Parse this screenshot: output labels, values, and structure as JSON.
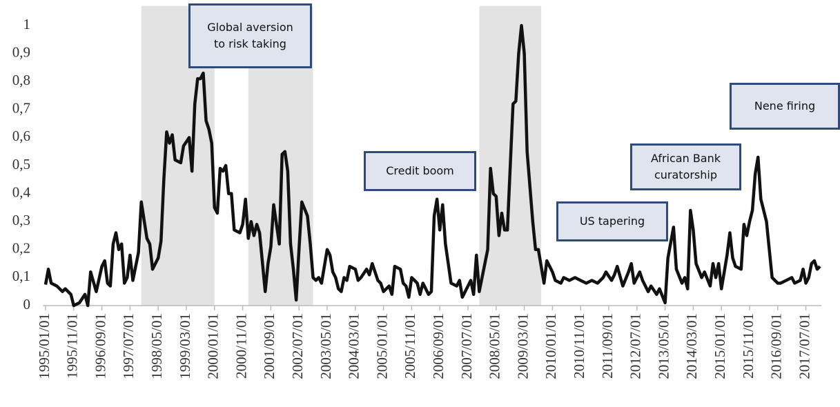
{
  "chart_data": {
    "type": "line",
    "x": [
      "1995/01/01",
      "1995/02/01",
      "1995/03/01",
      "1995/05/01",
      "1995/07/01",
      "1995/08/01",
      "1995/10/01",
      "1995/11/01",
      "1996/01/01",
      "1996/03/01",
      "1996/04/01",
      "1996/05/01",
      "1996/07/01",
      "1996/09/01",
      "1996/10/01",
      "1996/11/01",
      "1996/12/01",
      "1997/01/01",
      "1997/02/01",
      "1997/03/01",
      "1997/04/01",
      "1997/05/01",
      "1997/06/01",
      "1997/07/01",
      "1997/08/01",
      "1997/10/01",
      "1997/11/01",
      "1998/01/01",
      "1998/02/01",
      "1998/03/01",
      "1998/05/01",
      "1998/06/01",
      "1998/07/01",
      "1998/08/01",
      "1998/09/01",
      "1998/10/01",
      "1998/11/01",
      "1999/01/01",
      "1999/02/01",
      "1999/04/01",
      "1999/05/01",
      "1999/06/01",
      "1999/07/01",
      "1999/08/01",
      "1999/09/01",
      "1999/10/01",
      "1999/11/01",
      "1999/12/01",
      "2000/01/01",
      "2000/02/01",
      "2000/03/01",
      "2000/04/01",
      "2000/05/01",
      "2000/06/01",
      "2000/07/01",
      "2000/08/01",
      "2000/10/01",
      "2000/11/01",
      "2000/12/01",
      "2001/01/01",
      "2001/02/01",
      "2001/03/01",
      "2001/04/01",
      "2001/05/01",
      "2001/07/01",
      "2001/08/01",
      "2001/09/01",
      "2001/10/01",
      "2001/12/01",
      "2002/01/01",
      "2002/02/01",
      "2002/03/01",
      "2002/04/01",
      "2002/05/01",
      "2002/06/01",
      "2002/07/01",
      "2002/08/01",
      "2002/10/01",
      "2002/11/01",
      "2002/12/01",
      "2003/01/01",
      "2003/02/01",
      "2003/03/01",
      "2003/05/01",
      "2003/06/01",
      "2003/07/01",
      "2003/08/01",
      "2003/09/01",
      "2003/10/01",
      "2003/11/01",
      "2003/12/01",
      "2004/01/01",
      "2004/03/01",
      "2004/04/01",
      "2004/05/01",
      "2004/07/01",
      "2004/08/01",
      "2004/09/01",
      "2004/11/01",
      "2004/12/01",
      "2005/01/01",
      "2005/03/01",
      "2005/04/01",
      "2005/05/01",
      "2005/07/01",
      "2005/08/01",
      "2005/09/01",
      "2005/10/01",
      "2005/11/01",
      "2006/01/01",
      "2006/02/01",
      "2006/03/01",
      "2006/05/01",
      "2006/06/01",
      "2006/07/01",
      "2006/08/01",
      "2006/09/01",
      "2006/10/01",
      "2006/11/01",
      "2007/01/01",
      "2007/03/01",
      "2007/04/01",
      "2007/05/01",
      "2007/06/01",
      "2007/08/01",
      "2007/09/01",
      "2007/10/01",
      "2007/11/01",
      "2007/12/01",
      "2008/02/01",
      "2008/03/01",
      "2008/04/01",
      "2008/05/01",
      "2008/06/01",
      "2008/07/01",
      "2008/08/01",
      "2008/09/01",
      "2008/11/01",
      "2008/12/01",
      "2009/01/01",
      "2009/02/01",
      "2009/03/01",
      "2009/04/01",
      "2009/06/01",
      "2009/07/01",
      "2009/08/01",
      "2009/09/01",
      "2009/10/01",
      "2009/11/01",
      "2010/01/01",
      "2010/02/01",
      "2010/04/01",
      "2010/05/01",
      "2010/07/01",
      "2010/09/01",
      "2010/11/01",
      "2011/01/01",
      "2011/03/01",
      "2011/05/01",
      "2011/07/01",
      "2011/08/01",
      "2011/10/01",
      "2011/11/01",
      "2011/12/01",
      "2012/02/01",
      "2012/04/01",
      "2012/05/01",
      "2012/06/01",
      "2012/08/01",
      "2012/09/01",
      "2012/11/01",
      "2012/12/01",
      "2013/02/01",
      "2013/03/01",
      "2013/05/01",
      "2013/06/01",
      "2013/08/01",
      "2013/09/01",
      "2013/11/01",
      "2013/12/01",
      "2014/01/01",
      "2014/02/01",
      "2014/03/01",
      "2014/04/01",
      "2014/06/01",
      "2014/07/01",
      "2014/09/01",
      "2014/10/01",
      "2014/11/01",
      "2014/12/01",
      "2015/01/01",
      "2015/03/01",
      "2015/04/01",
      "2015/05/01",
      "2015/06/01",
      "2015/08/01",
      "2015/09/01",
      "2015/10/01",
      "2015/11/01",
      "2015/12/01",
      "2016/01/01",
      "2016/02/01",
      "2016/03/01",
      "2016/05/01",
      "2016/06/01",
      "2016/07/01",
      "2016/09/01",
      "2016/10/01",
      "2016/12/01",
      "2017/02/01",
      "2017/03/01",
      "2017/05/01",
      "2017/06/01",
      "2017/07/01",
      "2017/08/01",
      "2017/09/01",
      "2017/10/01",
      "2017/11/01",
      "2017/12/01"
    ],
    "values": [
      0.075,
      0.13,
      0.08,
      0.07,
      0.05,
      0.06,
      0.04,
      0.0,
      0.01,
      0.04,
      0.0,
      0.12,
      0.05,
      0.14,
      0.16,
      0.08,
      0.07,
      0.22,
      0.26,
      0.2,
      0.22,
      0.08,
      0.1,
      0.18,
      0.09,
      0.19,
      0.37,
      0.24,
      0.22,
      0.13,
      0.17,
      0.23,
      0.45,
      0.62,
      0.58,
      0.61,
      0.52,
      0.51,
      0.57,
      0.6,
      0.48,
      0.72,
      0.81,
      0.81,
      0.83,
      0.66,
      0.63,
      0.58,
      0.35,
      0.33,
      0.49,
      0.48,
      0.5,
      0.4,
      0.4,
      0.27,
      0.26,
      0.29,
      0.38,
      0.24,
      0.3,
      0.25,
      0.29,
      0.26,
      0.05,
      0.15,
      0.21,
      0.36,
      0.22,
      0.54,
      0.55,
      0.48,
      0.22,
      0.13,
      0.02,
      0.2,
      0.37,
      0.32,
      0.22,
      0.1,
      0.09,
      0.1,
      0.08,
      0.2,
      0.18,
      0.12,
      0.1,
      0.06,
      0.05,
      0.1,
      0.09,
      0.14,
      0.13,
      0.09,
      0.1,
      0.13,
      0.11,
      0.15,
      0.09,
      0.08,
      0.05,
      0.07,
      0.04,
      0.14,
      0.13,
      0.08,
      0.07,
      0.03,
      0.1,
      0.08,
      0.04,
      0.08,
      0.04,
      0.05,
      0.32,
      0.38,
      0.27,
      0.36,
      0.22,
      0.08,
      0.07,
      0.09,
      0.03,
      0.05,
      0.09,
      0.04,
      0.18,
      0.05,
      0.1,
      0.2,
      0.49,
      0.4,
      0.39,
      0.25,
      0.33,
      0.27,
      0.27,
      0.72,
      0.73,
      0.9,
      1.0,
      0.9,
      0.55,
      0.3,
      0.2,
      0.2,
      0.14,
      0.08,
      0.16,
      0.12,
      0.09,
      0.08,
      0.1,
      0.09,
      0.1,
      0.09,
      0.08,
      0.09,
      0.08,
      0.1,
      0.12,
      0.09,
      0.11,
      0.14,
      0.07,
      0.12,
      0.15,
      0.08,
      0.12,
      0.09,
      0.05,
      0.07,
      0.04,
      0.06,
      0.01,
      0.17,
      0.28,
      0.13,
      0.08,
      0.1,
      0.06,
      0.34,
      0.27,
      0.15,
      0.1,
      0.12,
      0.07,
      0.15,
      0.1,
      0.15,
      0.06,
      0.18,
      0.26,
      0.17,
      0.14,
      0.13,
      0.29,
      0.25,
      0.3,
      0.34,
      0.47,
      0.53,
      0.38,
      0.3,
      0.2,
      0.1,
      0.08,
      0.08,
      0.09,
      0.1,
      0.08,
      0.09,
      0.13,
      0.08,
      0.1,
      0.15,
      0.16,
      0.13,
      0.14
    ],
    "color": "#111111",
    "xlim": [
      "1995/01/01",
      "2017/12/01"
    ],
    "xticks": [
      "1995/01/01",
      "1995/11/01",
      "1996/09/01",
      "1997/07/01",
      "1998/05/01",
      "1999/03/01",
      "2000/01/01",
      "2000/11/01",
      "2001/09/01",
      "2002/07/01",
      "2003/05/01",
      "2004/03/01",
      "2005/01/01",
      "2005/11/01",
      "2006/09/01",
      "2007/07/01",
      "2008/05/01",
      "2009/03/01",
      "2010/01/01",
      "2010/11/01",
      "2011/09/01",
      "2012/07/01",
      "2013/05/01",
      "2014/03/01",
      "2015/01/01",
      "2015/11/01",
      "2016/09/01",
      "2017/07/01"
    ],
    "ylim": [
      0,
      1.07
    ],
    "yticks": [
      0,
      {
        "value": 0.1,
        "label": "0,1"
      },
      {
        "value": 0.2,
        "label": "0,2"
      },
      {
        "value": 0.3,
        "label": "0,3"
      },
      {
        "value": 0.4,
        "label": "0,4"
      },
      {
        "value": 0.5,
        "label": "0,5"
      },
      {
        "value": 0.6,
        "label": "0,6"
      },
      {
        "value": 0.7,
        "label": "0,7"
      },
      {
        "value": 0.8,
        "label": "0,8"
      },
      {
        "value": 0.9,
        "label": "0,9"
      },
      1
    ],
    "grid": false,
    "shaded_periods": [
      [
        "1997/11/01",
        "2000/01/01"
      ],
      [
        "2001/01/01",
        "2002/12/01"
      ],
      [
        "2007/11/01",
        "2009/09/01"
      ]
    ],
    "shade_color": "#e3e3e3",
    "annotations": [
      "Global aversion to risk taking",
      "Credit boom",
      "US tapering",
      "African Bank curatorship",
      "Nene firing"
    ]
  }
}
